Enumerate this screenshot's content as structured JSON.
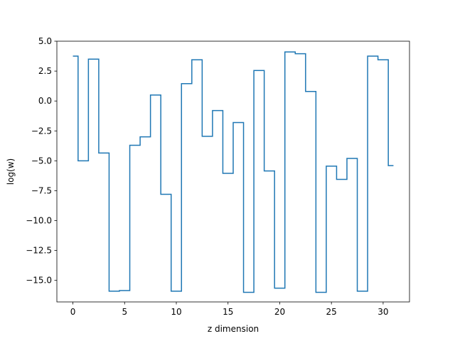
{
  "chart_data": {
    "type": "line",
    "drawstyle": "steps-mid",
    "xlabel": "z dimension",
    "ylabel": "log(w)",
    "xlim": [
      -1.55,
      32.55
    ],
    "ylim": [
      -16.8,
      5.0
    ],
    "xticks": [
      0,
      5,
      10,
      15,
      20,
      25,
      30
    ],
    "xtick_labels": [
      "0",
      "5",
      "10",
      "15",
      "20",
      "25",
      "30"
    ],
    "yticks": [
      5.0,
      2.5,
      0.0,
      -2.5,
      -5.0,
      -7.5,
      -10.0,
      -12.5,
      -15.0
    ],
    "ytick_labels": [
      "5.0",
      "2.5",
      "0.0",
      "−2.5",
      "−5.0",
      "−7.5",
      "−10.0",
      "−12.5",
      "−15.0"
    ],
    "grid": false,
    "series": [
      {
        "color": "#1f77b4",
        "x": [
          0,
          1,
          2,
          3,
          4,
          5,
          6,
          7,
          8,
          9,
          10,
          11,
          12,
          13,
          14,
          15,
          16,
          17,
          18,
          19,
          20,
          21,
          22,
          23,
          24,
          25,
          26,
          27,
          28,
          29,
          30,
          31
        ],
        "y": [
          3.75,
          -5.0,
          3.5,
          -4.35,
          -15.9,
          -15.85,
          -3.7,
          -3.0,
          0.5,
          -7.8,
          -15.9,
          1.45,
          3.45,
          -2.95,
          -0.8,
          -6.05,
          -1.8,
          -16.0,
          2.55,
          -5.85,
          -15.65,
          4.1,
          3.95,
          0.8,
          -16.0,
          -5.45,
          -6.55,
          -4.8,
          -15.9,
          3.75,
          3.45,
          -5.4
        ]
      }
    ]
  }
}
